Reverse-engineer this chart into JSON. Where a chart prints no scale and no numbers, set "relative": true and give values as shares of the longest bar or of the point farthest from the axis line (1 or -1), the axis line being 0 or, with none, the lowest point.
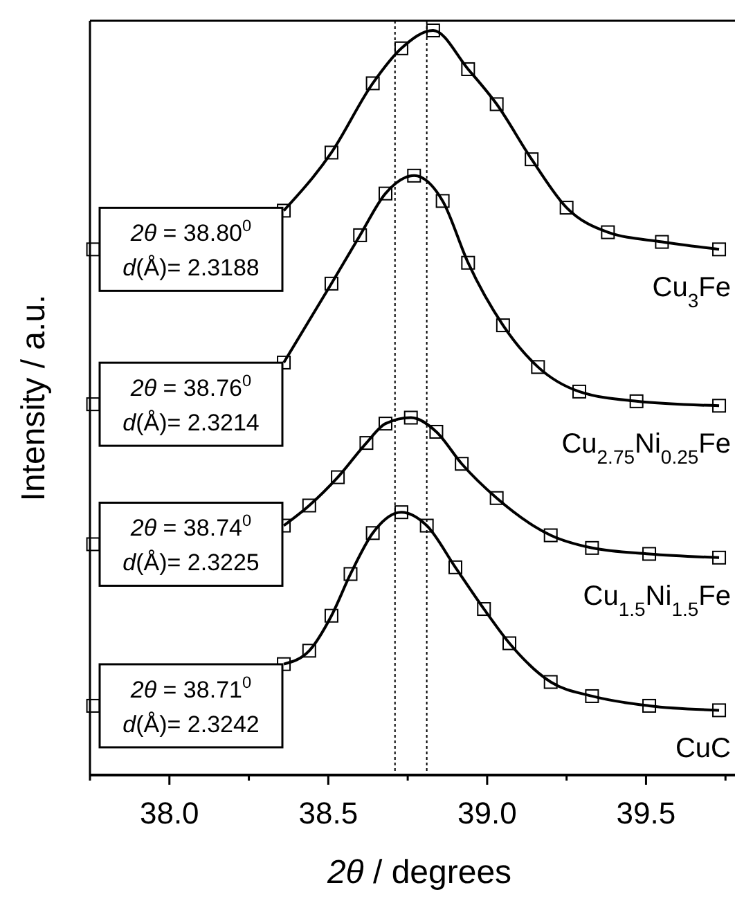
{
  "chart_data": {
    "type": "line",
    "relative": true,
    "marker": "square",
    "line_style": "solid",
    "xlabel": "2θ / degrees",
    "ylabel": "Intensity / a.u.",
    "xlim": [
      37.75,
      39.78
    ],
    "xticks": [
      {
        "value": 37.75,
        "label": null
      },
      {
        "value": 38,
        "label": "38.0"
      },
      {
        "value": 38.25,
        "label": null
      },
      38.5,
      {
        "value": 38.75,
        "label": null
      },
      {
        "value": 39,
        "label": "39.0"
      },
      {
        "value": 39.25,
        "label": null
      },
      39.5,
      {
        "value": 39.75,
        "label": null
      }
    ],
    "series": [
      {
        "name": "Cu$_{3}$Fe",
        "color": "#000000",
        "x": [
          37.76,
          38.0,
          38.36,
          38.51,
          38.64,
          38.73,
          38.83,
          38.94,
          39.03,
          39.14,
          39.25,
          39.38,
          39.55,
          39.73
        ],
        "values": [
          0.706,
          null,
          0.758,
          0.836,
          0.929,
          0.976,
          1,
          0.948,
          0.901,
          0.827,
          0.762,
          0.729,
          0.716,
          0.706
        ]
      },
      {
        "name": "Cu$_{2.75}$Ni$_{0.25}$Fe",
        "color": "#000000",
        "x": [
          37.76,
          38.0,
          38.36,
          38.51,
          38.6,
          38.68,
          38.77,
          38.86,
          38.94,
          39.05,
          39.16,
          39.29,
          39.47,
          39.73
        ],
        "values": [
          0.498,
          null,
          0.554,
          0.66,
          0.725,
          0.781,
          0.805,
          0.771,
          0.688,
          0.604,
          0.548,
          0.515,
          0.502,
          0.496
        ]
      },
      {
        "name": "Cu$_{1.5}$Ni$_{1.5}$Fe",
        "color": "#000000",
        "x": [
          37.76,
          38.0,
          38.36,
          38.44,
          38.53,
          38.62,
          38.68,
          38.76,
          38.84,
          38.92,
          39.03,
          39.2,
          39.33,
          39.51,
          39.73
        ],
        "values": [
          0.31,
          null,
          0.335,
          0.362,
          0.4,
          0.446,
          0.472,
          0.48,
          0.461,
          0.418,
          0.372,
          0.322,
          0.305,
          0.297,
          0.292
        ]
      },
      {
        "name": "CuC",
        "color": "#000000",
        "x": [
          37.76,
          38.0,
          38.36,
          38.44,
          38.51,
          38.57,
          38.64,
          38.73,
          38.81,
          38.9,
          38.99,
          39.07,
          39.2,
          39.33,
          39.51,
          39.73
        ],
        "values": [
          0.093,
          null,
          0.149,
          0.167,
          0.214,
          0.27,
          0.325,
          0.353,
          0.335,
          0.279,
          0.223,
          0.177,
          0.125,
          0.106,
          0.093,
          0.087
        ]
      }
    ],
    "ref_lines": [
      {
        "axis": "x",
        "value": 38.81,
        "line_style": "dotted"
      },
      {
        "axis": "x",
        "value": 38.71,
        "line_style": "dotted"
      }
    ],
    "annotations": [
      "2θ = 38.80$^{0}$\nd(Å)= 2.3188",
      "2θ = 38.76$^{0}$\nd(Å)= 2.3214",
      "2θ = 38.74$^{0}$\nd(Å)= 2.3225",
      "2θ = 38.71$^{0}$\nd(Å)= 2.3242"
    ]
  }
}
